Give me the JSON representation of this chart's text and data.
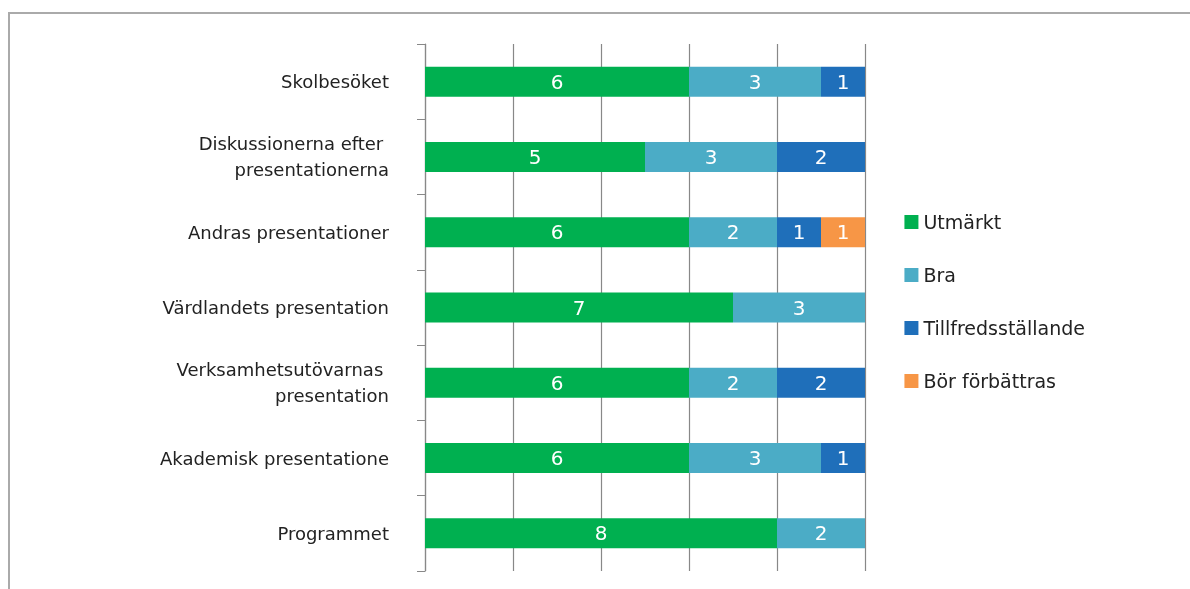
{
  "chart_data": {
    "type": "bar",
    "orientation": "horizontal",
    "stacked": true,
    "categories": [
      "Skolbesöket",
      "Diskussionerna efter presentationerna",
      "Andras presentationer",
      "Värdlandets presentation",
      "Verksamhetsutövarnas presentation",
      "Akademisk presentatione",
      "Programmet"
    ],
    "series": [
      {
        "name": "Utmärkt",
        "color": "#00b050",
        "values": [
          6,
          5,
          6,
          7,
          6,
          6,
          8
        ]
      },
      {
        "name": "Bra",
        "color": "#4bacc6",
        "values": [
          3,
          3,
          2,
          3,
          2,
          3,
          2
        ]
      },
      {
        "name": "Tillfredsställande",
        "color": "#1f6fba",
        "values": [
          1,
          2,
          1,
          null,
          2,
          1,
          null
        ]
      },
      {
        "name": "Bör förbättras",
        "color": "#f79646",
        "values": [
          null,
          null,
          1,
          null,
          null,
          null,
          null
        ]
      }
    ],
    "xlim": [
      0,
      10
    ],
    "xticks": [
      {
        "value": 0,
        "label": null
      },
      {
        "value": 2,
        "label": null
      },
      {
        "value": 4,
        "label": null
      },
      {
        "value": 6,
        "label": null
      },
      {
        "value": 8,
        "label": null
      },
      {
        "value": 10,
        "label": null
      }
    ],
    "grid": "x",
    "legend": "right",
    "tick_labels": "y",
    "data_labels": true
  }
}
